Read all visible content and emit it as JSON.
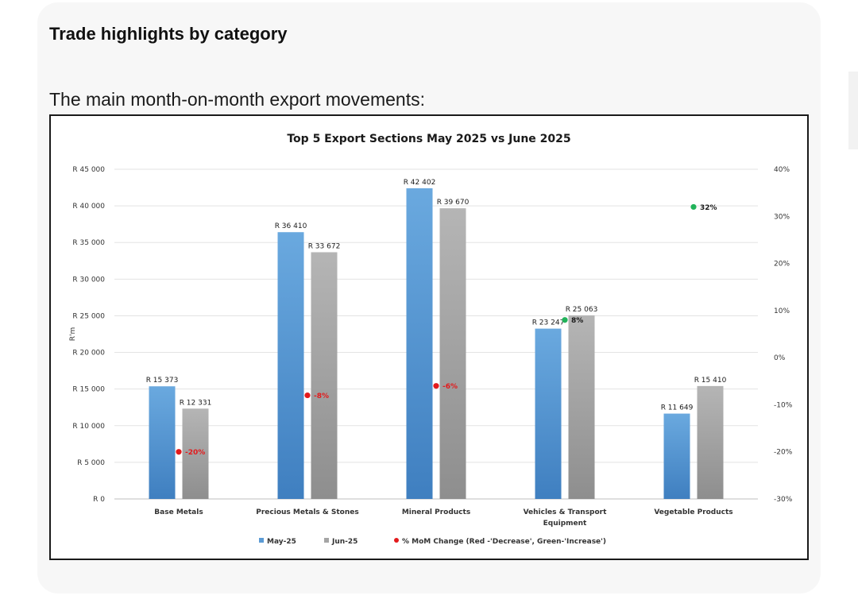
{
  "page": {
    "heading": "Trade highlights by category",
    "subheading": "The main month-on-month export movements:"
  },
  "chart_data": {
    "type": "bar",
    "title": "Top 5 Export Sections May 2025 vs June 2025",
    "ylabel": "R'm",
    "ylim": [
      0,
      45000
    ],
    "y_ticks": [
      "R 0",
      "R 5 000",
      "R 10 000",
      "R 15 000",
      "R 20 000",
      "R 25 000",
      "R 30 000",
      "R 35 000",
      "R 40 000",
      "R 45 000"
    ],
    "y2lim": [
      -30,
      40
    ],
    "y2_ticks": [
      "-30%",
      "-20%",
      "-10%",
      "0%",
      "10%",
      "20%",
      "30%",
      "40%"
    ],
    "categories": [
      "Base Metals",
      "Precious Metals & Stones",
      "Mineral Products",
      "Vehicles & Transport Equipment",
      "Vegetable Products"
    ],
    "category_label_lines": [
      [
        "Base Metals"
      ],
      [
        "Precious Metals & Stones"
      ],
      [
        "Mineral Products"
      ],
      [
        "Vehicles & Transport",
        "Equipment"
      ],
      [
        "Vegetable Products"
      ]
    ],
    "series": [
      {
        "name": "May-25",
        "values": [
          15373,
          36410,
          42402,
          23247,
          11649
        ],
        "labels": [
          "R 15 373",
          "R 36 410",
          "R 42 402",
          "R 23 247",
          "R 11 649"
        ],
        "color": "#5b9bd5"
      },
      {
        "name": "Jun-25",
        "values": [
          12331,
          33672,
          39670,
          25063,
          15410
        ],
        "labels": [
          "R 12 331",
          "R 33 672",
          "R 39 670",
          "R 25 063",
          "R 15 410"
        ],
        "color": "#a5a5a5"
      }
    ],
    "mom_change": {
      "name": "% MoM Change (Red -'Decrease', Green-'Increase')",
      "values": [
        -20,
        -8,
        -6,
        8,
        32
      ],
      "labels": [
        "-20%",
        "-8%",
        "-6%",
        "8%",
        "32%"
      ],
      "decrease_color": "#e31a1c",
      "increase_color": "#21b35a"
    },
    "legend_position": "bottom",
    "grid": true
  }
}
